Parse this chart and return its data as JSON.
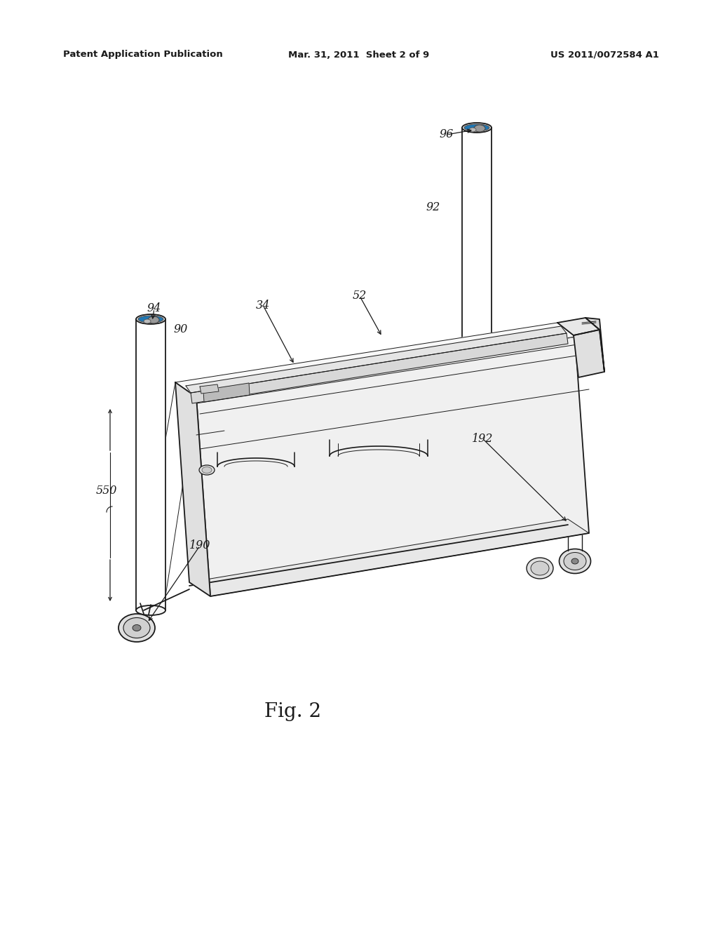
{
  "bg_color": "#ffffff",
  "line_color": "#1a1a1a",
  "header_left": "Patent Application Publication",
  "header_center": "Mar. 31, 2011  Sheet 2 of 9",
  "header_right": "US 2011/0072584 A1",
  "figure_label": "Fig. 2",
  "lw": 1.3,
  "lw_thin": 0.7,
  "lw_thick": 1.8
}
